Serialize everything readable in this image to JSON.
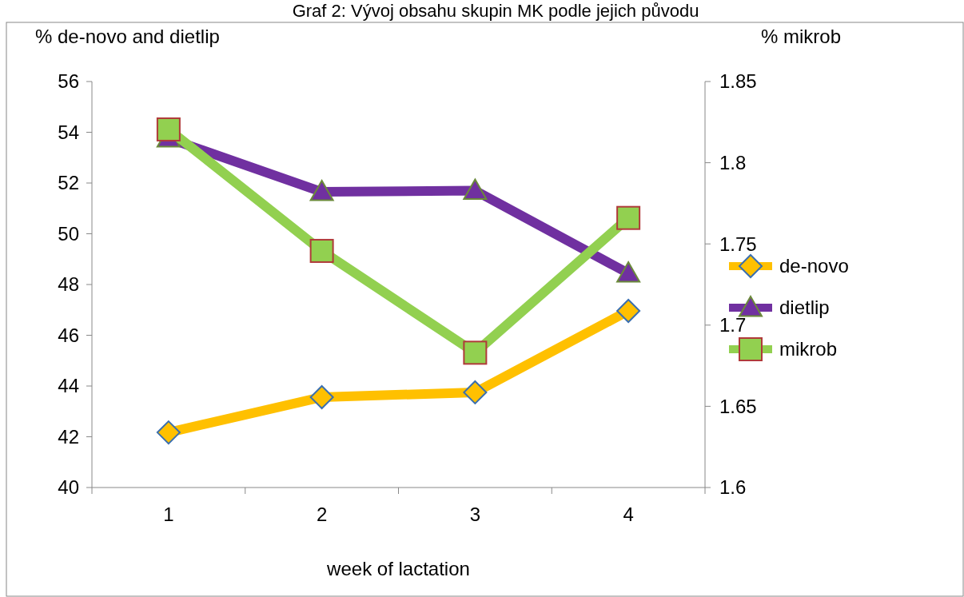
{
  "chart_data": {
    "type": "line",
    "title": "Graf 2: Vývoj obsahu skupin MK podle jejich původu",
    "xlabel": "week of lactation",
    "ylabel": "% de-novo and dietlip",
    "y2label": "% mikrob",
    "categories": [
      "1",
      "2",
      "3",
      "4"
    ],
    "series": [
      {
        "name": "de-novo",
        "color": "#ffc000",
        "marker": "diamond",
        "values": [
          42.17,
          43.56,
          43.75,
          46.96
        ]
      },
      {
        "name": "dietlip",
        "color": "#7030a0",
        "marker": "triangle",
        "values": [
          53.76,
          51.65,
          51.7,
          48.44
        ]
      },
      {
        "name": "mikrob",
        "color": "#92d050",
        "marker": "square",
        "axis": "y2",
        "values": [
          1.8205,
          1.7457,
          1.683,
          1.766
        ]
      }
    ],
    "ylim": [
      40,
      56
    ],
    "yticks": [
      40,
      42,
      44,
      46,
      48,
      50,
      52,
      54,
      56
    ],
    "y2lim": [
      1.6,
      1.85
    ],
    "y2ticks": [
      {
        "value": 1.6,
        "label": "1.6"
      },
      {
        "value": 1.65,
        "label": "1.65"
      },
      {
        "value": 1.7,
        "label": "1.7"
      },
      {
        "value": 1.75,
        "label": "1.75"
      },
      {
        "value": 1.8,
        "label": "1.8"
      },
      {
        "value": 1.85,
        "label": "1.85"
      }
    ],
    "grid": false,
    "legend": "right"
  }
}
